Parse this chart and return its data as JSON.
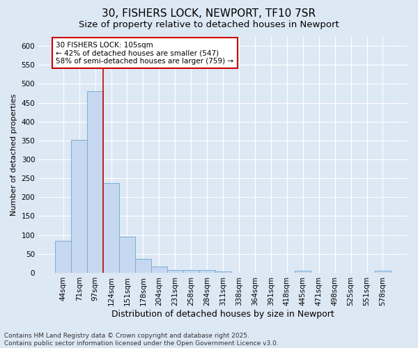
{
  "title": "30, FISHERS LOCK, NEWPORT, TF10 7SR",
  "subtitle": "Size of property relative to detached houses in Newport",
  "xlabel": "Distribution of detached houses by size in Newport",
  "ylabel": "Number of detached properties",
  "categories": [
    "44sqm",
    "71sqm",
    "97sqm",
    "124sqm",
    "151sqm",
    "178sqm",
    "204sqm",
    "231sqm",
    "258sqm",
    "284sqm",
    "311sqm",
    "338sqm",
    "364sqm",
    "391sqm",
    "418sqm",
    "445sqm",
    "471sqm",
    "498sqm",
    "525sqm",
    "551sqm",
    "578sqm"
  ],
  "values": [
    85,
    352,
    480,
    237,
    96,
    37,
    16,
    7,
    8,
    8,
    4,
    0,
    0,
    0,
    0,
    5,
    0,
    0,
    0,
    0,
    5
  ],
  "bar_color": "#c5d8ef",
  "bar_edgecolor": "#7aadd4",
  "bg_color": "#dde8f5",
  "grid_color": "#ffffff",
  "vline_color": "#cc0000",
  "annotation_text": "30 FISHERS LOCK: 105sqm\n← 42% of detached houses are smaller (547)\n58% of semi-detached houses are larger (759) →",
  "annotation_box_color": "#ffffff",
  "annotation_box_edgecolor": "#cc0000",
  "footer_text": "Contains HM Land Registry data © Crown copyright and database right 2025.\nContains public sector information licensed under the Open Government Licence v3.0.",
  "ylim": [
    0,
    625
  ],
  "yticks": [
    0,
    50,
    100,
    150,
    200,
    250,
    300,
    350,
    400,
    450,
    500,
    550,
    600
  ],
  "title_fontsize": 11,
  "subtitle_fontsize": 9.5,
  "xlabel_fontsize": 9,
  "ylabel_fontsize": 8,
  "tick_fontsize": 7.5,
  "annot_fontsize": 7.5,
  "footer_fontsize": 6.5
}
